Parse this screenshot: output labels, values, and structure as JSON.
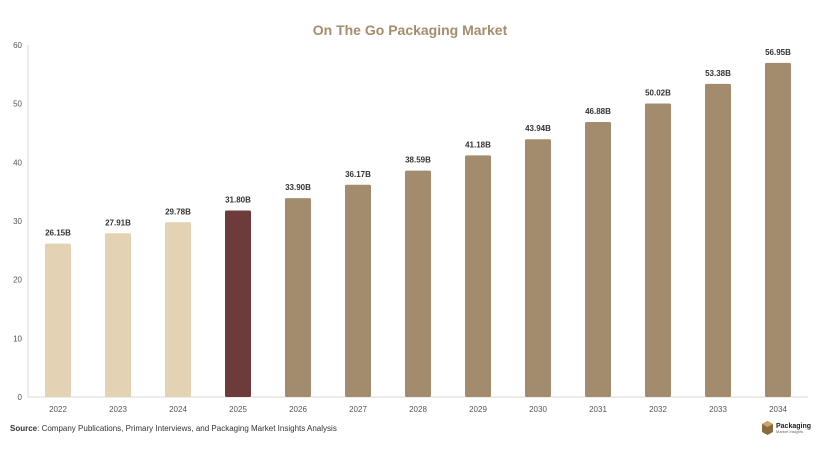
{
  "chart_data": {
    "type": "bar",
    "title": "On The Go Packaging Market",
    "categories": [
      "2022",
      "2023",
      "2024",
      "2025",
      "2026",
      "2027",
      "2028",
      "2029",
      "2030",
      "2031",
      "2032",
      "2033",
      "2034"
    ],
    "values": [
      26.15,
      27.91,
      29.78,
      31.8,
      33.9,
      36.17,
      38.59,
      41.18,
      43.94,
      46.88,
      50.02,
      53.38,
      56.95
    ],
    "data_labels": [
      "26.15B",
      "27.91B",
      "29.78B",
      "31.80B",
      "33.90B",
      "36.17B",
      "38.59B",
      "41.18B",
      "43.94B",
      "46.88B",
      "50.02B",
      "53.38B",
      "56.95B"
    ],
    "bar_colors": [
      "#e3d2b4",
      "#e3d2b4",
      "#e3d2b4",
      "#6e3b3b",
      "#a38b6d",
      "#a38b6d",
      "#a38b6d",
      "#a38b6d",
      "#a38b6d",
      "#a38b6d",
      "#a38b6d",
      "#a38b6d",
      "#a38b6d"
    ],
    "ylim": [
      0,
      60
    ],
    "yticks": [
      0,
      10,
      20,
      30,
      40,
      50,
      60
    ],
    "xlabel": "",
    "ylabel": "",
    "grid": false
  },
  "source": {
    "label": "Source",
    "text": ": Company Publications, Primary Interviews, and Packaging Market Insights Analysis"
  },
  "logo": {
    "name": "Packaging",
    "sub": "Market Insights",
    "color": "#8a6a3f"
  }
}
